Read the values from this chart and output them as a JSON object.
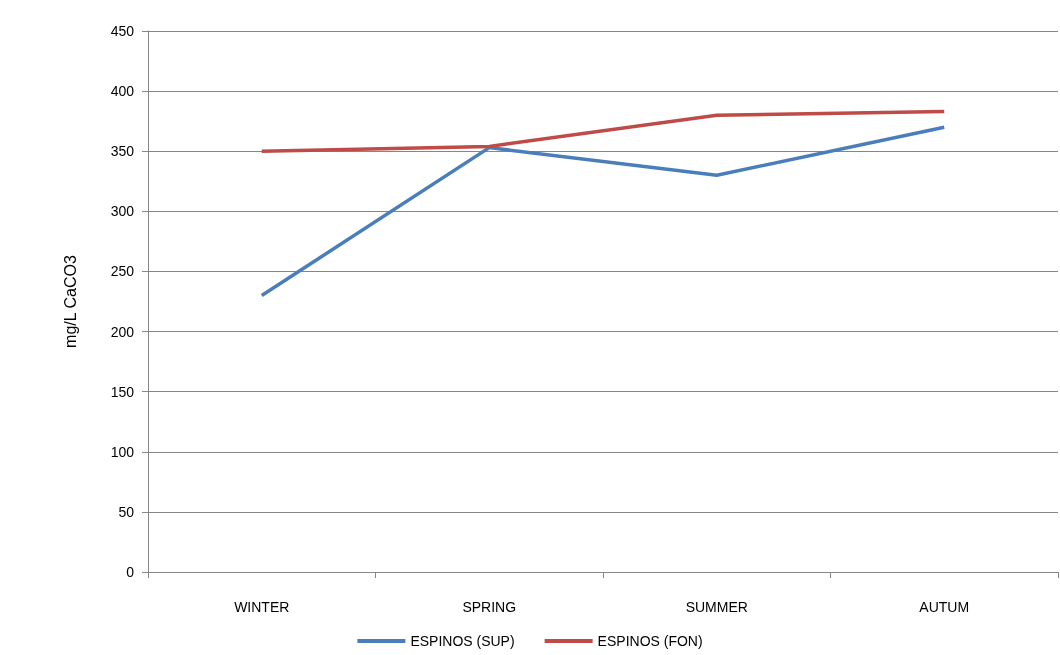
{
  "chart_data": {
    "type": "line",
    "ylabel": "mg/L CaCO3",
    "categories": [
      "WINTER",
      "SPRING",
      "SUMMER",
      "AUTUM"
    ],
    "series": [
      {
        "name": "ESPINOS (SUP)",
        "color": "#4a7ebb",
        "values": [
          230,
          353,
          330,
          370
        ]
      },
      {
        "name": "ESPINOS (FON)",
        "color": "#be4b48",
        "values": [
          350,
          354,
          380,
          383
        ]
      }
    ],
    "ylim": [
      0,
      450
    ],
    "yticks": [
      0,
      50,
      100,
      150,
      200,
      250,
      300,
      350,
      400,
      450
    ],
    "grid": "y",
    "legend": "bottom",
    "marker": "none",
    "line_style": "solid"
  }
}
